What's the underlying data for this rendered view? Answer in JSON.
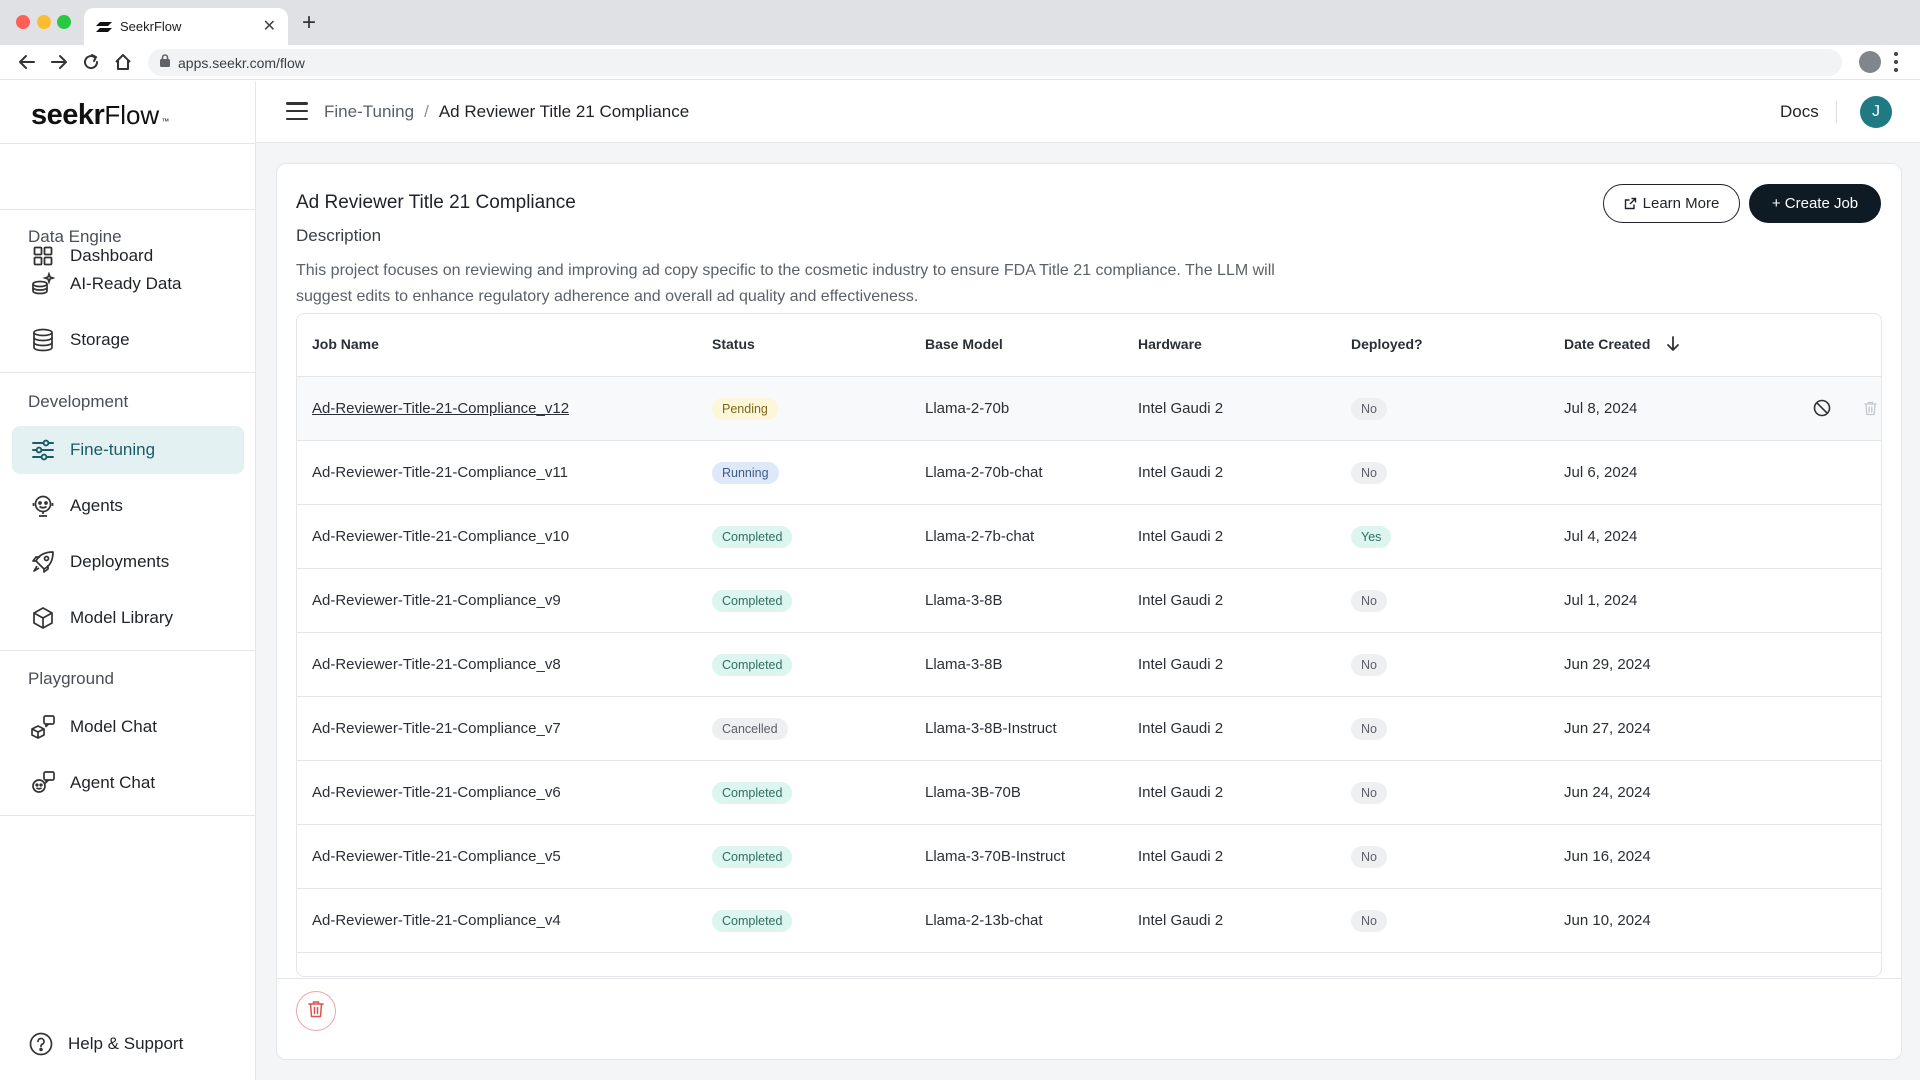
{
  "browser": {
    "tab_title": "SeekrFlow",
    "url": "apps.seekr.com/flow"
  },
  "brand": {
    "logo_main": "seekr",
    "logo_sub": "Flow",
    "logo_mark": "™"
  },
  "sidebar": {
    "dashboard": "Dashboard",
    "sections": {
      "data_engine": "Data Engine",
      "development": "Development",
      "playground": "Playground"
    },
    "items": {
      "ai_ready_data": "AI-Ready Data",
      "storage": "Storage",
      "fine_tuning": "Fine-tuning",
      "agents": "Agents",
      "deployments": "Deployments",
      "model_library": "Model Library",
      "model_chat": "Model Chat",
      "agent_chat": "Agent Chat"
    },
    "help": "Help & Support"
  },
  "topbar": {
    "breadcrumb_parent": "Fine-Tuning",
    "breadcrumb_separator": "/",
    "breadcrumb_current": "Ad Reviewer Title 21 Compliance",
    "docs": "Docs",
    "avatar_initial": "J"
  },
  "project": {
    "title": "Ad Reviewer Title 21 Compliance",
    "description_label": "Description",
    "description": "This project focuses on reviewing and improving ad copy specific to the cosmetic industry to ensure FDA Title 21 compliance. The LLM will suggest edits to enhance regulatory adherence and overall ad quality and effectiveness.",
    "learn_more": "Learn More",
    "create_job": "+ Create Job"
  },
  "table": {
    "headers": {
      "job_name": "Job Name",
      "status": "Status",
      "base_model": "Base Model",
      "hardware": "Hardware",
      "deployed": "Deployed?",
      "date_created": "Date Created"
    },
    "rows": [
      {
        "job": "Ad-Reviewer-Title-21-Compliance_v12",
        "status": "Pending",
        "model": "Llama-2-70b",
        "hardware": "Intel Gaudi 2",
        "deployed": "No",
        "date": "Jul 8, 2024"
      },
      {
        "job": "Ad-Reviewer-Title-21-Compliance_v11",
        "status": "Running",
        "model": "Llama-2-70b-chat",
        "hardware": "Intel Gaudi 2",
        "deployed": "No",
        "date": "Jul 6, 2024"
      },
      {
        "job": "Ad-Reviewer-Title-21-Compliance_v10",
        "status": "Completed",
        "model": "Llama-2-7b-chat",
        "hardware": "Intel Gaudi 2",
        "deployed": "Yes",
        "date": "Jul 4, 2024"
      },
      {
        "job": "Ad-Reviewer-Title-21-Compliance_v9",
        "status": "Completed",
        "model": "Llama-3-8B",
        "hardware": "Intel Gaudi 2",
        "deployed": "No",
        "date": "Jul 1, 2024"
      },
      {
        "job": "Ad-Reviewer-Title-21-Compliance_v8",
        "status": "Completed",
        "model": "Llama-3-8B",
        "hardware": "Intel Gaudi 2",
        "deployed": "No",
        "date": "Jun 29, 2024"
      },
      {
        "job": "Ad-Reviewer-Title-21-Compliance_v7",
        "status": "Cancelled",
        "model": "Llama-3-8B-Instruct",
        "hardware": "Intel Gaudi 2",
        "deployed": "No",
        "date": "Jun 27, 2024"
      },
      {
        "job": "Ad-Reviewer-Title-21-Compliance_v6",
        "status": "Completed",
        "model": "Llama-3B-70B",
        "hardware": "Intel Gaudi 2",
        "deployed": "No",
        "date": "Jun 24, 2024"
      },
      {
        "job": "Ad-Reviewer-Title-21-Compliance_v5",
        "status": "Completed",
        "model": "Llama-3-70B-Instruct",
        "hardware": "Intel Gaudi 2",
        "deployed": "No",
        "date": "Jun 16, 2024"
      },
      {
        "job": "Ad-Reviewer-Title-21-Compliance_v4",
        "status": "Completed",
        "model": "Llama-2-13b-chat",
        "hardware": "Intel Gaudi 2",
        "deployed": "No",
        "date": "Jun 10, 2024"
      }
    ]
  },
  "colors": {
    "accent": "#1f7a84",
    "primary_button": "#0e1a24",
    "active_nav_bg": "#e3f1f3"
  },
  "icons": {
    "row_cancel": "cancel-icon",
    "row_delete": "trash-icon",
    "footer_delete": "trash-icon"
  }
}
